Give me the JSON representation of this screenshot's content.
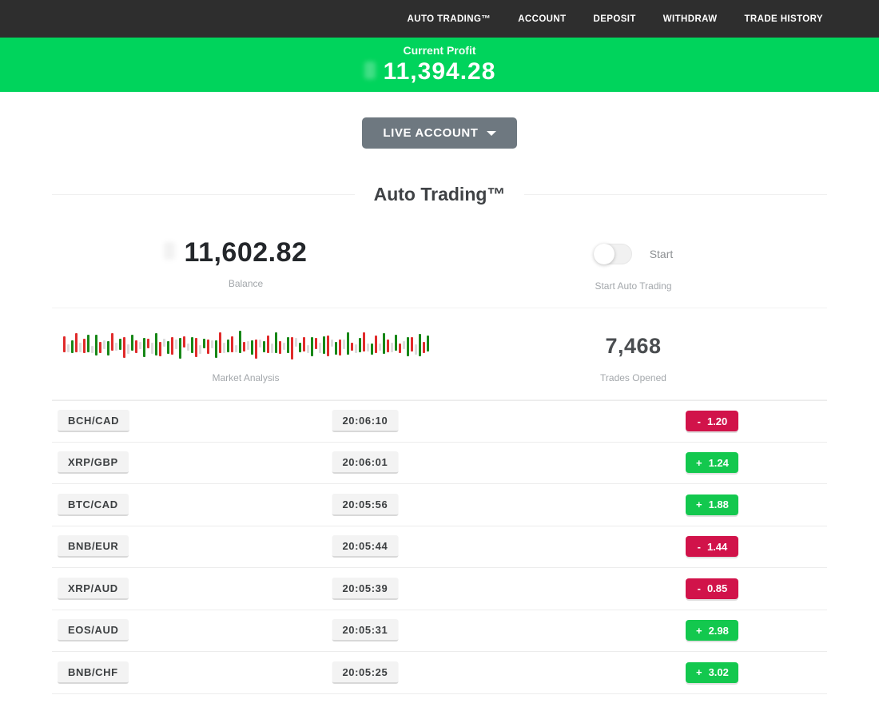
{
  "nav": {
    "items": [
      "AUTO TRADING™",
      "ACCOUNT",
      "DEPOSIT",
      "WITHDRAW",
      "TRADE HISTORY"
    ]
  },
  "profit_banner": {
    "label": "Current Profit",
    "value": "11,394.28"
  },
  "account_selector": {
    "label": "LIVE ACCOUNT"
  },
  "section": {
    "title": "Auto Trading™"
  },
  "stats": {
    "balance": {
      "value": "11,602.82",
      "label": "Balance"
    },
    "auto_trading": {
      "toggle_label": "Start",
      "label": "Start Auto Trading",
      "state": "off"
    },
    "market": {
      "label": "Market Analysis"
    },
    "trades_opened": {
      "value": "7,468",
      "label": "Trades Opened"
    }
  },
  "chart_data": {
    "type": "bar",
    "title": "Market Analysis",
    "description": "decorative mini candlestick-style strip; bars encoded as color:height:offset (r=red, g=green, n=neutral gray)",
    "bars": "r:20:-2,n:10:3,g:16:1,r:24:-4,n:12:2,r:18:0,g:22:-3,n:9:4,g:26:-1,r:14:2,n:11:-2,g:18:3,r:22:-5,n:10:1,g:14:-2,r:26:2,n:12:4,g:20:-4,r:16:1,n:9:-1,g:24:2,r:12:-3,n:14:3,g:28:-2,r:18:4,n:10:-4,g:16:2,r:22:0,n:12:-2,g:26:3,r:14:-5,n:9:1,g:20:-1,r:24:2,n:11:4,g:12:-3,r:18:1,n:10:-2,g:22:4,r:26:-4,n:13:2,g:16:0,r:20:-2,n:9:3,g:28:-5,r:12:1,n:11:-1,g:18:2,r:24:4,n:10:-3,g:14:1,r:22:-2,n:12:3,g:26:-4,r:16:2,n:9:0,g:20:-1,r:28:3,n:11:-5,g:12:2,r:18:-2,n:10:4,g:24:1,r:14:-3,n:13:2,g:22:-1,r:26:0,n:9:-4,g:16:3,r:20:2,n:12:-2,g:28:-3,r:10:1,n:11:3,g:18:-1,r:24:-5,n:10:2,g:14:4,r:22:-2,n:9:1,g:26:-3,r:16:0,n:12:2,g:20:-4,r:12:3,n:10:-1,g:24:1,r:18:-2,n:13:4,g:28:-1,r:14:2,g:20:-3"
  },
  "trades": [
    {
      "pair": "BCH/CAD",
      "time": "20:06:10",
      "sign": "-",
      "amount": "1.20",
      "direction": "down"
    },
    {
      "pair": "XRP/GBP",
      "time": "20:06:01",
      "sign": "+",
      "amount": "1.24",
      "direction": "up"
    },
    {
      "pair": "BTC/CAD",
      "time": "20:05:56",
      "sign": "+",
      "amount": "1.88",
      "direction": "up"
    },
    {
      "pair": "BNB/EUR",
      "time": "20:05:44",
      "sign": "-",
      "amount": "1.44",
      "direction": "down"
    },
    {
      "pair": "XRP/AUD",
      "time": "20:05:39",
      "sign": "-",
      "amount": "0.85",
      "direction": "down"
    },
    {
      "pair": "EOS/AUD",
      "time": "20:05:31",
      "sign": "+",
      "amount": "2.98",
      "direction": "up"
    },
    {
      "pair": "BNB/CHF",
      "time": "20:05:25",
      "sign": "+",
      "amount": "3.02",
      "direction": "up"
    }
  ],
  "colors": {
    "accent_green": "#00d45c",
    "gain": "#13c84e",
    "loss": "#d1134a",
    "nav_bg": "#2e2e2e",
    "bar_red": "#e02b2b",
    "bar_green": "#178717",
    "bar_neutral": "#dcdcdc"
  }
}
